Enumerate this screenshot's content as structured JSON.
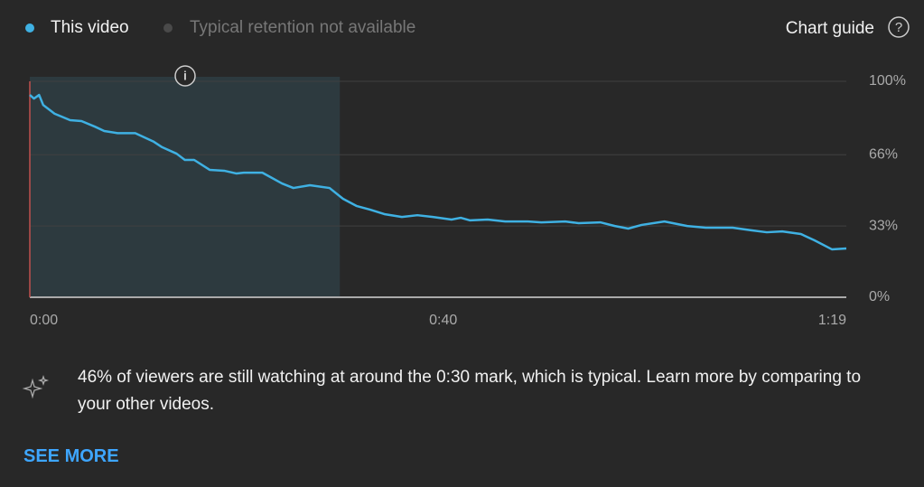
{
  "chart_data": {
    "type": "line",
    "x": [
      0,
      0.4,
      0.9,
      1.3,
      2.4,
      3.9,
      5,
      6.3,
      7.2,
      8.5,
      10.2,
      11.1,
      12,
      12.8,
      14.2,
      15,
      15.9,
      17.4,
      18.8,
      20,
      20.7,
      22.5,
      23.3,
      24.4,
      25.5,
      27.1,
      29,
      30.3,
      31.6,
      32.9,
      34.3,
      36,
      37.5,
      39,
      40.8,
      41.7,
      42.6,
      44.3,
      46,
      48.2,
      49.5,
      51.8,
      53.1,
      55.2,
      56.6,
      57.9,
      59.2,
      61.4,
      63.6,
      65.4,
      68,
      69.8,
      71.3,
      72.8,
      74.6,
      75.9,
      77.6,
      79
    ],
    "series": [
      {
        "name": "This video",
        "color": "#3fb1e3",
        "values": [
          93.7,
          92,
          93.7,
          89,
          85,
          82,
          81.6,
          79,
          77,
          76,
          76,
          74,
          72,
          69.5,
          66.5,
          63.6,
          63.6,
          59,
          58.6,
          57.3,
          57.7,
          57.7,
          55.6,
          52.7,
          50.6,
          51.9,
          50.6,
          45.6,
          42.3,
          40.6,
          38.5,
          37.2,
          38,
          37.2,
          36,
          36.8,
          35.6,
          36,
          35.1,
          35.1,
          34.7,
          35.1,
          34.3,
          34.7,
          33,
          31.8,
          33.5,
          35.1,
          33,
          32.2,
          32.2,
          31,
          30.1,
          30.5,
          29.3,
          26.4,
          22.2,
          22.6
        ]
      }
    ],
    "highlight": [
      0,
      30
    ],
    "xlim": [
      0,
      79
    ],
    "xticks": [
      {
        "value": 0,
        "label": "0:00"
      },
      {
        "value": 40,
        "label": "0:40"
      },
      {
        "value": 79,
        "label": "1:19"
      }
    ],
    "ylim": [
      0,
      100
    ],
    "yticks": [
      {
        "value": 0,
        "label": "0%"
      },
      {
        "value": 33,
        "label": "33%"
      },
      {
        "value": 66,
        "label": "66%"
      },
      {
        "value": 100,
        "label": "100%"
      }
    ],
    "grid": true
  },
  "ui": {
    "typical_legend": "Typical retention not available",
    "chart_guide": "Chart guide",
    "insight": "46% of viewers are still watching at around the 0:30 mark, which is typical. Learn more by comparing to your other videos.",
    "see_more": "SEE MORE"
  }
}
